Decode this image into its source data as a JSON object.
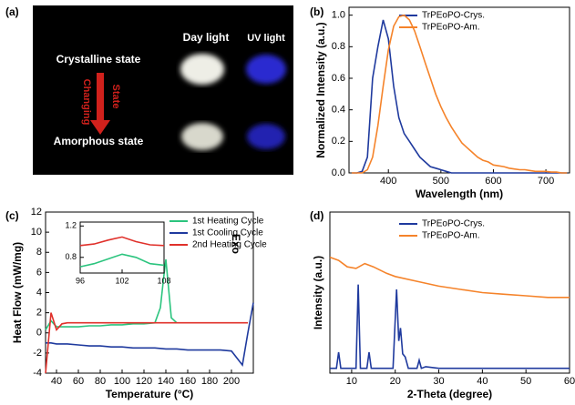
{
  "photo_panel": {
    "panel_label": "(a)",
    "day_label": "Day light",
    "uv_label": "UV light",
    "crystalline_label": "Crystalline state",
    "amorphous_label": "Amorphous state",
    "arrow_label_1": "State",
    "arrow_label_2": "Changing"
  },
  "chart_data": [
    {
      "type": "line",
      "panel_label": "(b)",
      "xlabel": "Wavelength (nm)",
      "ylabel": "Normalized Intensity (a.u.)",
      "xlim": [
        325,
        745
      ],
      "xticks": [
        400,
        500,
        600,
        700
      ],
      "ylim": [
        0,
        1.05
      ],
      "yticks": [
        {
          "value": 0,
          "label": "0.0"
        },
        0.2,
        0.4,
        0.6,
        0.8,
        {
          "value": 1,
          "label": "1.0"
        }
      ],
      "series": [
        {
          "name": "TrPEoPO-Crys.",
          "color": "#1f3a9e",
          "x": [
            330,
            340,
            350,
            360,
            370,
            380,
            390,
            400,
            410,
            420,
            430,
            440,
            450,
            460,
            470,
            480,
            490,
            500,
            510,
            520,
            530,
            540,
            550,
            560,
            570,
            580,
            590,
            600,
            610,
            620,
            630,
            640,
            650,
            660,
            670,
            680,
            690,
            700,
            710,
            720,
            730,
            740
          ],
          "values": [
            0,
            0,
            0.01,
            0.1,
            0.6,
            0.8,
            0.97,
            0.85,
            0.55,
            0.35,
            0.25,
            0.2,
            0.15,
            0.1,
            0.07,
            0.04,
            0.03,
            0.02,
            0.01,
            0,
            0,
            0,
            0,
            0,
            0,
            0,
            0,
            0,
            0,
            0,
            0,
            0,
            0,
            0,
            0,
            0,
            0,
            0,
            0,
            0,
            0,
            0
          ]
        },
        {
          "name": "TrPEoPO-Am.",
          "color": "#f5832a",
          "x": [
            330,
            340,
            350,
            360,
            370,
            380,
            390,
            400,
            410,
            420,
            430,
            440,
            450,
            460,
            470,
            480,
            490,
            500,
            510,
            520,
            530,
            540,
            550,
            560,
            570,
            580,
            590,
            600,
            610,
            620,
            630,
            640,
            650,
            660,
            670,
            680,
            690,
            700,
            710,
            720,
            730,
            740
          ],
          "values": [
            0,
            0,
            0,
            0.02,
            0.1,
            0.3,
            0.55,
            0.78,
            0.93,
            0.99,
            1.0,
            0.97,
            0.9,
            0.8,
            0.7,
            0.6,
            0.5,
            0.42,
            0.35,
            0.29,
            0.24,
            0.19,
            0.16,
            0.13,
            0.1,
            0.08,
            0.07,
            0.05,
            0.045,
            0.04,
            0.03,
            0.025,
            0.02,
            0.02,
            0.015,
            0.01,
            0.01,
            0.01,
            0.005,
            0.005,
            0,
            0
          ]
        }
      ]
    },
    {
      "type": "line",
      "panel_label": "(c)",
      "xlabel": "Temperature (°C)",
      "ylabel": "Heat Flow (mW/mg)",
      "annotation": "Exo",
      "xlim": [
        30,
        220
      ],
      "xticks": [
        40,
        60,
        80,
        100,
        120,
        140,
        160,
        180,
        200
      ],
      "ylim": [
        -4,
        12
      ],
      "yticks": [
        -4,
        -2,
        0,
        2,
        4,
        6,
        8,
        10,
        12
      ],
      "series": [
        {
          "name": "1st Heating Cycle",
          "color": "#2bc47e",
          "x": [
            30,
            35,
            40,
            45,
            50,
            60,
            70,
            80,
            90,
            100,
            110,
            120,
            130,
            135,
            138,
            140,
            142,
            145,
            150
          ],
          "values": [
            0.3,
            1.2,
            0.6,
            0.6,
            0.6,
            0.6,
            0.7,
            0.7,
            0.8,
            0.8,
            0.9,
            0.9,
            1.0,
            2.5,
            5.5,
            7.3,
            5,
            1.5,
            1.0
          ]
        },
        {
          "name": "1st Cooling Cycle",
          "color": "#1f3a9e",
          "x": [
            30,
            35,
            40,
            45,
            50,
            60,
            70,
            80,
            90,
            100,
            110,
            120,
            130,
            140,
            150,
            160,
            170,
            180,
            190,
            200,
            205,
            210,
            215,
            220
          ],
          "values": [
            -1.0,
            -1.0,
            -1.1,
            -1.1,
            -1.1,
            -1.2,
            -1.3,
            -1.3,
            -1.4,
            -1.4,
            -1.5,
            -1.5,
            -1.5,
            -1.6,
            -1.6,
            -1.7,
            -1.7,
            -1.7,
            -1.7,
            -1.8,
            -2.5,
            -3.2,
            0,
            3.0
          ]
        },
        {
          "name": "2nd Heating Cycle",
          "color": "#e0312b",
          "x": [
            30,
            35,
            40,
            45,
            50,
            60,
            70,
            80,
            90,
            100,
            110,
            120,
            130,
            140,
            150,
            160,
            170,
            180,
            190,
            200,
            210,
            215
          ],
          "values": [
            -4,
            2.0,
            0.3,
            0.9,
            1.0,
            1.0,
            1.0,
            1.0,
            1.0,
            1.0,
            1.0,
            1.0,
            1.0,
            1.0,
            1.0,
            1.0,
            1.0,
            1.0,
            1.0,
            1.0,
            1.0,
            1.0
          ]
        }
      ]
    },
    {
      "type": "line",
      "xlim": [
        96,
        108
      ],
      "xticks": [
        96,
        102,
        108
      ],
      "ylim": [
        0.6,
        1.25
      ],
      "yticks": [
        0.8,
        1.2
      ],
      "series": [
        {
          "color": "#e0312b",
          "x": [
            96,
            98,
            100,
            102,
            104,
            106,
            108
          ],
          "values": [
            0.95,
            0.97,
            1.02,
            1.06,
            1.0,
            0.96,
            0.95
          ]
        },
        {
          "color": "#2bc47e",
          "x": [
            96,
            98,
            100,
            102,
            104,
            106,
            108
          ],
          "values": [
            0.68,
            0.72,
            0.78,
            0.84,
            0.8,
            0.72,
            0.7
          ]
        }
      ]
    },
    {
      "type": "line",
      "panel_label": "(d)",
      "xlabel": "2-Theta (degree)",
      "ylabel": "Intensity (a.u.)",
      "xlim": [
        5,
        60
      ],
      "xticks": [
        10,
        20,
        30,
        40,
        50,
        60
      ],
      "ylim": [
        0,
        1
      ],
      "series": [
        {
          "name": "TrPEoPO-Crys.",
          "color": "#1f3a9e",
          "x": [
            5,
            6.5,
            7,
            7.5,
            11,
            11.5,
            12,
            13.5,
            14,
            14.5,
            15,
            19.5,
            20.3,
            20.8,
            21.2,
            21.7,
            22.3,
            23,
            25,
            25.5,
            26,
            27,
            30,
            60
          ],
          "values": [
            0.03,
            0.03,
            0.13,
            0.03,
            0.03,
            0.55,
            0.03,
            0.03,
            0.13,
            0.03,
            0.03,
            0.03,
            0.52,
            0.2,
            0.28,
            0.12,
            0.1,
            0.03,
            0.03,
            0.08,
            0.03,
            0.04,
            0.03,
            0.03
          ]
        },
        {
          "name": "TrPEoPO-Am.",
          "color": "#f5832a",
          "x": [
            5,
            7,
            9,
            11,
            13,
            15,
            18,
            20,
            25,
            30,
            35,
            40,
            45,
            50,
            55,
            60
          ],
          "values": [
            0.72,
            0.7,
            0.66,
            0.65,
            0.68,
            0.66,
            0.62,
            0.6,
            0.57,
            0.54,
            0.52,
            0.5,
            0.49,
            0.48,
            0.47,
            0.47
          ]
        }
      ]
    }
  ]
}
